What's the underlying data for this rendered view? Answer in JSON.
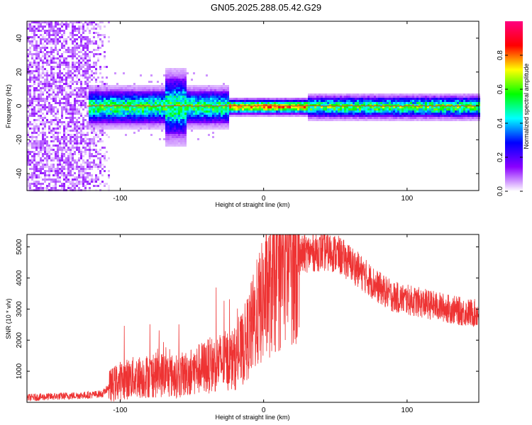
{
  "figure": {
    "title": "GN05.2025.288.05.42.G29"
  },
  "chart_data": [
    {
      "type": "heatmap",
      "xlabel": "Height of straight line (km)",
      "ylabel": "Frequency (Hz)",
      "xlim": [
        -165,
        150
      ],
      "ylim": [
        -50,
        50
      ],
      "x_ticks": [
        -100,
        0,
        100
      ],
      "y_ticks": [
        -40,
        -20,
        0,
        20,
        40
      ],
      "colorbar": {
        "label": "Normalized spectral amplitude",
        "range": [
          0,
          1
        ],
        "ticks": [
          "0.0",
          "0.2",
          "0.4",
          "0.6",
          "0.8"
        ],
        "colormap": [
          "#ffffff",
          "#8b00ff",
          "#0000ff",
          "#00ffff",
          "#00ff00",
          "#ffff00",
          "#ff0000",
          "#ff0080"
        ]
      },
      "features": {
        "noise_region_x": [
          -165,
          -108
        ],
        "band_start_x": -123,
        "center_frequency_hz": 0
      }
    },
    {
      "type": "line",
      "xlabel": "Height of straight line (km)",
      "ylabel": "SNR (10 * v/v)",
      "xlim": [
        -165,
        150
      ],
      "ylim": [
        0,
        5400
      ],
      "x_ticks": [
        -100,
        0,
        100
      ],
      "y_ticks": [
        1000,
        2000,
        3000,
        4000,
        5000
      ],
      "series_color": "#ee3333",
      "envelope": {
        "x": [
          -165,
          -140,
          -120,
          -112,
          -108,
          -100,
          -90,
          -80,
          -70,
          -60,
          -50,
          -40,
          -30,
          -20,
          -15,
          -10,
          -5,
          0,
          5,
          10,
          15,
          20,
          30,
          40,
          50,
          60,
          70,
          80,
          90,
          100,
          110,
          120,
          130,
          140,
          150
        ],
        "y": [
          150,
          200,
          240,
          280,
          500,
          700,
          800,
          850,
          900,
          820,
          1000,
          1150,
          1300,
          1400,
          1700,
          2200,
          2800,
          3300,
          3700,
          4000,
          4400,
          4600,
          4800,
          4850,
          4800,
          4500,
          4100,
          3700,
          3400,
          3300,
          3200,
          3100,
          3000,
          2900,
          2850
        ]
      }
    }
  ]
}
